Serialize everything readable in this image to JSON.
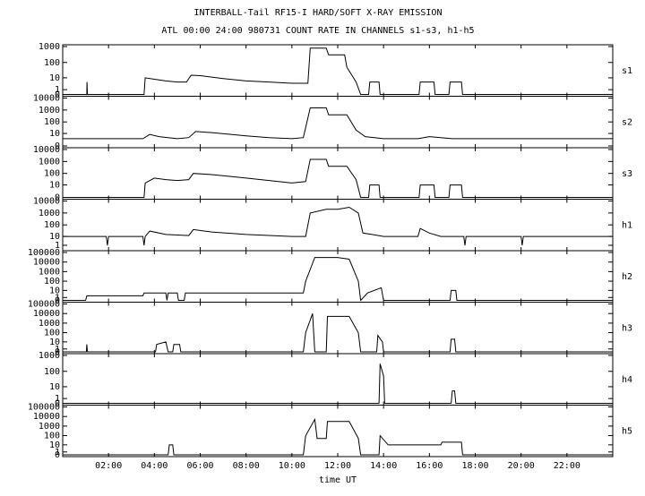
{
  "chart_data": {
    "type": "line",
    "title": "INTERBALL-Tail RF15-I HARD/SOFT X-RAY EMISSION",
    "subtitle": "ATL 00:00 24:00 980731  COUNT RATE IN CHANNELS s1-s3, h1-h5",
    "x_label": "time UT",
    "yscale": "log1p",
    "color": "#000000",
    "xlim": [
      0,
      24
    ],
    "xticks": [
      {
        "value": 2,
        "label": "02:00"
      },
      {
        "value": 4,
        "label": "04:00"
      },
      {
        "value": 6,
        "label": "06:00"
      },
      {
        "value": 8,
        "label": "08:00"
      },
      {
        "value": 10,
        "label": "10:00"
      },
      {
        "value": 12,
        "label": "12:00"
      },
      {
        "value": 14,
        "label": "14:00"
      },
      {
        "value": 16,
        "label": "16:00"
      },
      {
        "value": 18,
        "label": "18:00"
      },
      {
        "value": 20,
        "label": "20:00"
      },
      {
        "value": 22,
        "label": "22:00"
      }
    ],
    "panels": [
      {
        "name": "s1",
        "ylim": [
          0,
          1000
        ],
        "yticks": [
          0,
          1,
          10,
          100,
          1000
        ],
        "x": [
          0,
          1.05,
          1.06,
          1.08,
          3.55,
          3.6,
          4.0,
          4.5,
          5.0,
          5.4,
          5.6,
          6.0,
          7.0,
          8.0,
          9.0,
          10.0,
          10.7,
          10.8,
          11.5,
          11.6,
          12.3,
          12.4,
          12.8,
          13.0,
          13.35,
          13.4,
          13.8,
          13.85,
          15.55,
          15.6,
          16.2,
          16.25,
          16.85,
          16.9,
          17.4,
          17.45,
          24
        ],
        "values": [
          0,
          0,
          5,
          0,
          0,
          10,
          8,
          6,
          5,
          5,
          15,
          14,
          9,
          6,
          5,
          4,
          4,
          800,
          800,
          300,
          300,
          50,
          5,
          0,
          0,
          5,
          5,
          0,
          0,
          5,
          5,
          0,
          0,
          5,
          5,
          0,
          0
        ]
      },
      {
        "name": "s2",
        "ylim": [
          0,
          10000
        ],
        "yticks": [
          0,
          10,
          100,
          1000,
          10000
        ],
        "x": [
          0,
          3.5,
          3.8,
          4.2,
          5.0,
          5.5,
          5.8,
          6.5,
          8,
          9,
          10,
          10.5,
          10.8,
          11.5,
          11.6,
          12.4,
          12.8,
          13.2,
          14,
          15.5,
          16,
          17,
          24
        ],
        "values": [
          3,
          3,
          8,
          5,
          3,
          4,
          15,
          12,
          6,
          4,
          3,
          4,
          1500,
          1500,
          400,
          400,
          20,
          5,
          3,
          3,
          5,
          3,
          3
        ]
      },
      {
        "name": "s3",
        "ylim": [
          0,
          10000
        ],
        "yticks": [
          0,
          10,
          100,
          1000,
          10000
        ],
        "x": [
          0,
          3.55,
          3.6,
          4.0,
          4.5,
          5.0,
          5.5,
          5.7,
          6.5,
          8,
          9,
          10,
          10.6,
          10.8,
          11.5,
          11.6,
          12.4,
          12.8,
          13.0,
          13.35,
          13.4,
          13.8,
          13.85,
          15.55,
          15.6,
          16.2,
          16.25,
          16.85,
          16.9,
          17.4,
          17.45,
          24
        ],
        "values": [
          0,
          0,
          15,
          40,
          30,
          25,
          30,
          100,
          80,
          40,
          25,
          15,
          20,
          1500,
          1500,
          400,
          400,
          30,
          0,
          0,
          10,
          10,
          0,
          0,
          10,
          10,
          0,
          0,
          10,
          10,
          0,
          0
        ]
      },
      {
        "name": "h1",
        "ylim": [
          0,
          10000
        ],
        "yticks": [
          1,
          10,
          100,
          1000,
          10000
        ],
        "x": [
          0,
          1.9,
          1.95,
          2,
          3.5,
          3.55,
          3.6,
          3.8,
          4.5,
          5.5,
          5.7,
          6.5,
          8,
          10,
          10.6,
          10.8,
          11.5,
          12,
          12.5,
          12.9,
          13.1,
          13.5,
          14,
          15.5,
          15.6,
          16,
          16.5,
          17.5,
          17.55,
          17.6,
          20,
          20.05,
          20.1,
          24
        ],
        "values": [
          10,
          10,
          1,
          10,
          10,
          1,
          10,
          30,
          15,
          12,
          40,
          25,
          15,
          10,
          10,
          1000,
          2000,
          2000,
          3000,
          1000,
          20,
          15,
          10,
          10,
          50,
          20,
          10,
          10,
          1,
          10,
          10,
          1,
          10,
          10
        ]
      },
      {
        "name": "h2",
        "ylim": [
          0,
          100000
        ],
        "yticks": [
          0,
          1,
          10,
          100,
          1000,
          10000,
          100000
        ],
        "x": [
          0,
          1.0,
          1.05,
          3.5,
          3.55,
          4.5,
          4.55,
          4.6,
          5.0,
          5.05,
          5.3,
          5.35,
          10.5,
          10.6,
          11,
          12,
          12.5,
          12.9,
          13.0,
          13.3,
          13.9,
          14,
          16.9,
          16.95,
          17.15,
          17.2,
          24
        ],
        "values": [
          0,
          0,
          2,
          2,
          5,
          5,
          0,
          5,
          5,
          0,
          0,
          5,
          5,
          100,
          30000,
          30000,
          20000,
          100,
          0,
          5,
          20,
          0,
          0,
          10,
          10,
          0,
          0
        ]
      },
      {
        "name": "h3",
        "ylim": [
          0,
          100000
        ],
        "yticks": [
          0,
          1,
          10,
          100,
          1000,
          10000,
          100000
        ],
        "x": [
          0,
          1.03,
          1.05,
          1.08,
          4.05,
          4.1,
          4.5,
          4.6,
          4.8,
          4.85,
          5.1,
          5.15,
          10.5,
          10.6,
          10.9,
          11.0,
          11.5,
          11.55,
          12.5,
          12.9,
          13.0,
          13.7,
          13.75,
          13.95,
          14.0,
          16.9,
          16.95,
          17.1,
          17.15,
          24
        ],
        "values": [
          0,
          0,
          5,
          0,
          0,
          5,
          10,
          0,
          0,
          5,
          5,
          0,
          0,
          100,
          10000,
          0,
          0,
          5000,
          5000,
          100,
          0,
          0,
          50,
          10,
          0,
          0,
          20,
          20,
          0,
          0
        ]
      },
      {
        "name": "h4",
        "ylim": [
          0,
          1000
        ],
        "yticks": [
          0,
          1,
          10,
          100,
          1000
        ],
        "x": [
          0,
          13.8,
          13.85,
          14.0,
          14.05,
          16.95,
          17.0,
          17.1,
          17.15,
          24
        ],
        "values": [
          0,
          0,
          300,
          50,
          0,
          0,
          5,
          5,
          0,
          0
        ]
      },
      {
        "name": "h5",
        "ylim": [
          0,
          100000
        ],
        "yticks": [
          0,
          1,
          10,
          100,
          1000,
          10000,
          100000
        ],
        "x": [
          0,
          4.6,
          4.65,
          4.8,
          4.85,
          10.5,
          10.6,
          11,
          11.1,
          11.5,
          11.55,
          12.5,
          12.9,
          13.0,
          13.8,
          13.85,
          14.2,
          16.5,
          16.55,
          17.4,
          17.45,
          24
        ],
        "values": [
          0,
          0,
          10,
          10,
          0,
          0,
          100,
          5000,
          50,
          50,
          3000,
          3000,
          50,
          0,
          0,
          100,
          10,
          10,
          20,
          20,
          0,
          0
        ]
      }
    ]
  }
}
